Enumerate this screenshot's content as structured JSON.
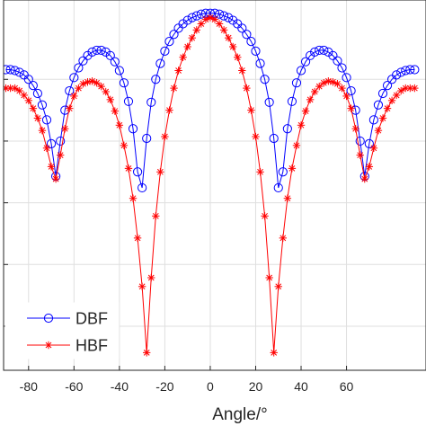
{
  "chart_data": {
    "type": "line",
    "title": "",
    "xlabel": "Angle/°",
    "ylabel": "",
    "xlim": [
      -91,
      95
    ],
    "ylim": [
      -40,
      2
    ],
    "xticks": [
      -80,
      -60,
      -40,
      -20,
      0,
      20,
      40,
      60
    ],
    "xtick_labels": [
      "-80",
      "-60",
      "-40",
      "-20",
      "0",
      "20",
      "40",
      "60"
    ],
    "yticks": [
      -35,
      -28,
      -21,
      -14,
      -7
    ],
    "grid": true,
    "legend_position": "bottom-left",
    "series": [
      {
        "name": "DBF",
        "color": "#0000ff",
        "marker": "circle",
        "x": [
          -90,
          -88,
          -86,
          -84,
          -82,
          -80,
          -78,
          -76,
          -74,
          -72,
          -70,
          -68,
          -66,
          -64,
          -62,
          -60,
          -58,
          -56,
          -54,
          -52,
          -50,
          -48,
          -46,
          -44,
          -42,
          -40,
          -38,
          -36,
          -34,
          -32,
          -30,
          -28,
          -26,
          -24,
          -22,
          -20,
          -18,
          -16,
          -14,
          -12,
          -10,
          -8,
          -6,
          -4,
          -2,
          0,
          2,
          4,
          6,
          8,
          10,
          12,
          14,
          16,
          18,
          20,
          22,
          24,
          26,
          28,
          30,
          32,
          34,
          36,
          38,
          40,
          42,
          44,
          46,
          48,
          50,
          52,
          54,
          56,
          58,
          60,
          62,
          64,
          66,
          68,
          70,
          72,
          74,
          76,
          78,
          80,
          82,
          84,
          86,
          88,
          90
        ],
        "y": [
          -5.9,
          -5.9,
          -6.0,
          -6.2,
          -6.5,
          -7.0,
          -7.7,
          -8.6,
          -9.9,
          -11.6,
          -14.3,
          -18.0,
          -14.0,
          -10.5,
          -8.3,
          -6.8,
          -5.7,
          -4.9,
          -4.3,
          -3.9,
          -3.7,
          -3.7,
          -3.9,
          -4.3,
          -5.0,
          -6.0,
          -7.4,
          -9.5,
          -12.6,
          -17.5,
          -19.3,
          -13.7,
          -9.6,
          -7.0,
          -5.2,
          -3.8,
          -2.7,
          -1.9,
          -1.2,
          -0.7,
          -0.3,
          0.0,
          0.2,
          0.4,
          0.5,
          0.5,
          0.5,
          0.4,
          0.2,
          0.0,
          -0.3,
          -0.7,
          -1.2,
          -1.9,
          -2.7,
          -3.8,
          -5.2,
          -7.0,
          -9.6,
          -13.7,
          -19.3,
          -17.5,
          -12.6,
          -9.5,
          -7.4,
          -6.0,
          -5.0,
          -4.3,
          -3.9,
          -3.7,
          -3.7,
          -3.9,
          -4.3,
          -4.9,
          -5.7,
          -6.8,
          -8.3,
          -10.5,
          -14.0,
          -18.0,
          -14.3,
          -11.6,
          -9.9,
          -8.6,
          -7.7,
          -7.0,
          -6.5,
          -6.2,
          -6.0,
          -5.9,
          -5.9
        ]
      },
      {
        "name": "HBF",
        "color": "#ff0000",
        "marker": "asterisk",
        "x": [
          -90,
          -88,
          -86,
          -84,
          -82,
          -80,
          -78,
          -76,
          -74,
          -72,
          -70,
          -68,
          -66,
          -64,
          -62,
          -60,
          -58,
          -56,
          -54,
          -52,
          -50,
          -48,
          -46,
          -44,
          -42,
          -40,
          -38,
          -36,
          -34,
          -32,
          -30,
          -28,
          -26,
          -24,
          -22,
          -20,
          -18,
          -16,
          -14,
          -12,
          -10,
          -8,
          -6,
          -4,
          -2,
          0,
          2,
          4,
          6,
          8,
          10,
          12,
          14,
          16,
          18,
          20,
          22,
          24,
          26,
          28,
          30,
          32,
          34,
          36,
          38,
          40,
          42,
          44,
          46,
          48,
          50,
          52,
          54,
          56,
          58,
          60,
          62,
          64,
          66,
          68,
          70,
          72,
          74,
          76,
          78,
          80,
          82,
          84,
          86,
          88,
          90
        ],
        "y": [
          -8.0,
          -8.0,
          -8.0,
          -8.3,
          -8.8,
          -9.4,
          -10.3,
          -11.4,
          -12.8,
          -14.8,
          -16.9,
          -18.3,
          -15.6,
          -12.6,
          -10.3,
          -8.9,
          -8.0,
          -7.5,
          -7.3,
          -7.2,
          -7.4,
          -7.8,
          -8.4,
          -9.3,
          -10.6,
          -12.2,
          -14.5,
          -17.1,
          -20.5,
          -25.0,
          -30.5,
          -38.0,
          -29.5,
          -22.5,
          -17.5,
          -13.5,
          -10.5,
          -8.0,
          -6.0,
          -4.5,
          -3.3,
          -2.3,
          -1.4,
          -0.7,
          -0.2,
          0.0,
          -0.2,
          -0.7,
          -1.4,
          -2.3,
          -3.3,
          -4.5,
          -6.0,
          -8.0,
          -10.5,
          -13.5,
          -17.5,
          -22.5,
          -29.5,
          -38.0,
          -30.5,
          -25.0,
          -20.5,
          -17.1,
          -14.5,
          -12.2,
          -10.6,
          -9.3,
          -8.4,
          -7.8,
          -7.4,
          -7.2,
          -7.3,
          -7.5,
          -8.0,
          -8.9,
          -10.3,
          -12.6,
          -15.6,
          -18.3,
          -16.9,
          -14.8,
          -12.8,
          -11.4,
          -10.3,
          -9.4,
          -8.8,
          -8.3,
          -8.0,
          -8.0,
          -8.0
        ]
      }
    ]
  }
}
